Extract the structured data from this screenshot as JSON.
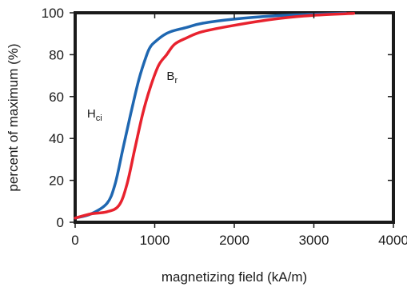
{
  "chart_data": {
    "type": "line",
    "xlabel": "magnetizing field (kA/m)",
    "ylabel": "percent of maximum (%)",
    "xlim": [
      0,
      4000
    ],
    "ylim": [
      0,
      100
    ],
    "x_ticks": [
      0,
      1000,
      2000,
      3000,
      4000
    ],
    "y_ticks": [
      0,
      20,
      40,
      60,
      80,
      100
    ],
    "x_tick_labels": [
      "0",
      "1000",
      "2000",
      "3000",
      "4000"
    ],
    "y_tick_labels": [
      "0",
      "20",
      "40",
      "60",
      "80",
      "100"
    ],
    "grid": false,
    "colors": {
      "Hci": "#1f67b1",
      "Br": "#e8222e",
      "axes": "#1a1a1a"
    },
    "series": [
      {
        "key": "Hci",
        "x": [
          0,
          200,
          400,
          500,
          600,
          700,
          800,
          900,
          950,
          1000,
          1100,
          1200,
          1400,
          1600,
          2000,
          2500,
          3000,
          3400
        ],
        "y": [
          2,
          4,
          9,
          18,
          35,
          52,
          68,
          80,
          84,
          86,
          89,
          91,
          93,
          95,
          97,
          98.5,
          99.3,
          99.8
        ]
      },
      {
        "key": "Br",
        "x": [
          0,
          200,
          400,
          550,
          650,
          750,
          850,
          950,
          1050,
          1150,
          1250,
          1400,
          1600,
          2000,
          2500,
          3000,
          3500
        ],
        "y": [
          2,
          4,
          5,
          8,
          18,
          35,
          52,
          65,
          75,
          80,
          85,
          88,
          91,
          94,
          97,
          98.8,
          99.7
        ]
      }
    ],
    "annotations": [
      {
        "series": "Hci",
        "main": "H",
        "sub": "ci",
        "x": 150,
        "y": 50
      },
      {
        "series": "Br",
        "main": "B",
        "sub": "r",
        "x": 1150,
        "y": 68
      }
    ]
  }
}
